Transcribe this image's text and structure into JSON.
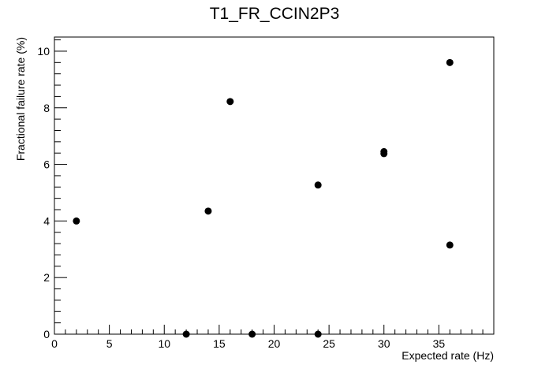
{
  "chart_data": {
    "type": "scatter",
    "title": "T1_FR_CCIN2P3",
    "xlabel": "Expected rate (Hz)",
    "ylabel": "Fractional failure rate (%)",
    "xlim": [
      0,
      40
    ],
    "ylim": [
      0,
      10.5
    ],
    "x_ticks": [
      0,
      5,
      10,
      15,
      20,
      25,
      30,
      35
    ],
    "y_ticks": [
      0,
      2,
      4,
      6,
      8,
      10
    ],
    "grid": false,
    "legend": "none",
    "marker_color": "#000000",
    "points": [
      {
        "x": 2,
        "y": 4.0
      },
      {
        "x": 12,
        "y": 0.0
      },
      {
        "x": 14,
        "y": 4.35
      },
      {
        "x": 16,
        "y": 8.22
      },
      {
        "x": 18,
        "y": 0.0
      },
      {
        "x": 24,
        "y": 5.27
      },
      {
        "x": 24,
        "y": 0.0
      },
      {
        "x": 30,
        "y": 6.45
      },
      {
        "x": 30,
        "y": 6.38
      },
      {
        "x": 36,
        "y": 9.6
      },
      {
        "x": 36,
        "y": 3.15
      }
    ]
  }
}
